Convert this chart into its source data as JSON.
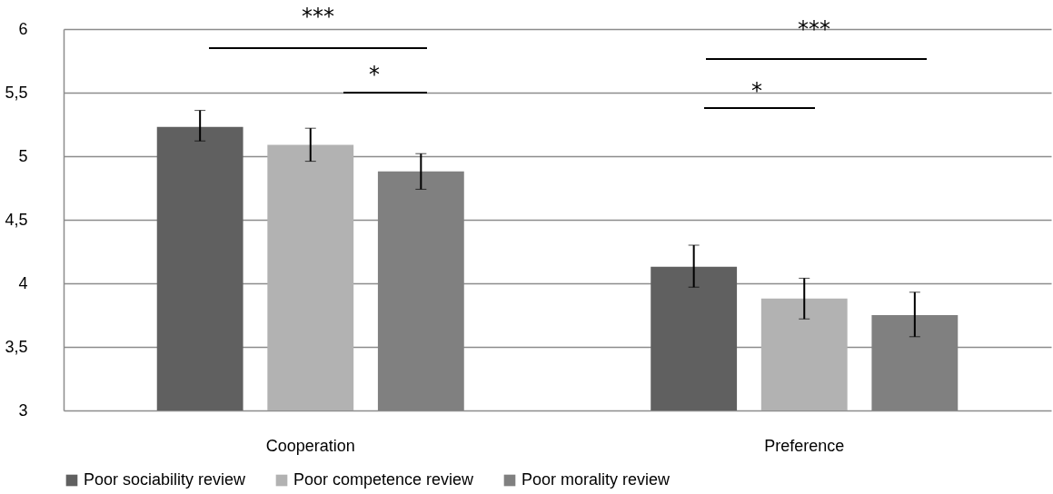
{
  "chart_data": {
    "type": "bar",
    "categories": [
      "Cooperation",
      "Preference"
    ],
    "series": [
      {
        "name": "Poor sociability review",
        "color": "#606060",
        "values": [
          5.23,
          4.13
        ],
        "errors": [
          [
            5.12,
            5.36
          ],
          [
            3.97,
            4.3
          ]
        ]
      },
      {
        "name": "Poor competence review",
        "color": "#b2b2b2",
        "values": [
          5.09,
          3.88
        ],
        "errors": [
          [
            4.96,
            5.22
          ],
          [
            3.72,
            4.04
          ]
        ]
      },
      {
        "name": "Poor morality review",
        "color": "#808080",
        "values": [
          4.88,
          3.75
        ],
        "errors": [
          [
            4.74,
            5.02
          ],
          [
            3.58,
            3.93
          ]
        ]
      }
    ],
    "ylim": [
      3,
      6
    ],
    "yticks": [
      3,
      {
        "value": 3.5,
        "label": "3,5"
      },
      4,
      {
        "value": 4.5,
        "label": "4,5"
      },
      5,
      {
        "value": 5.5,
        "label": "5,5"
      },
      6
    ],
    "grid": "y",
    "legend": "bottom",
    "annotations": [
      "***",
      "*",
      "***",
      "*"
    ]
  }
}
